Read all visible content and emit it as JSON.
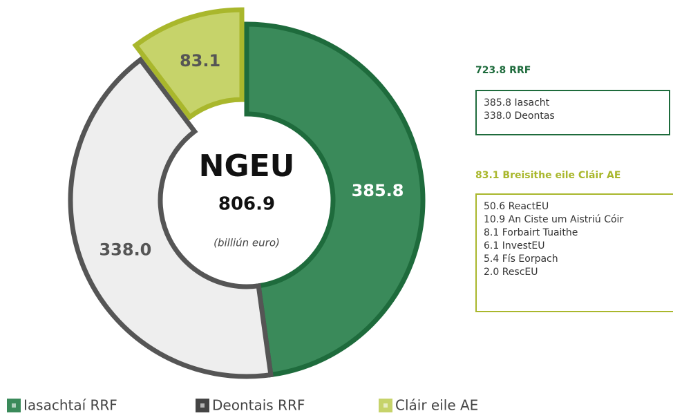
{
  "chart_data": {
    "type": "donut",
    "center_title": "NGEU",
    "total": 806.9,
    "unit_note": "(billiún euro)",
    "series": [
      {
        "name": "Iasachtaí RRF",
        "color": "#3a8a5a",
        "stroke": "#1e6b3c",
        "value": 385.8
      },
      {
        "name": "Deontais RRF",
        "color": "#eeeeee",
        "stroke": "#555555",
        "value": 338.0
      },
      {
        "name": "Cláir eile AE",
        "color": "#c6d36a",
        "stroke": "#a9b72c",
        "value": 83.1,
        "exploded": true
      }
    ],
    "value_labels": [
      "385.8",
      "338.0",
      "83.1"
    ]
  },
  "breakdowns": [
    {
      "title": "723.8 RRF",
      "color": "#1e6b3c",
      "items": [
        "385.8 Iasacht",
        "338.0 Deontas"
      ]
    },
    {
      "title": "83.1 Breisithe eile Cláir AE",
      "color": "#a9b72c",
      "items": [
        "50.6 ReactEU",
        "10.9 An Ciste um Aistriú Cóir",
        "8.1 Forbairt Tuaithe",
        "6.1 InvestEU",
        "5.4 Fís Eorpach",
        "2.0 RescEU"
      ]
    }
  ]
}
